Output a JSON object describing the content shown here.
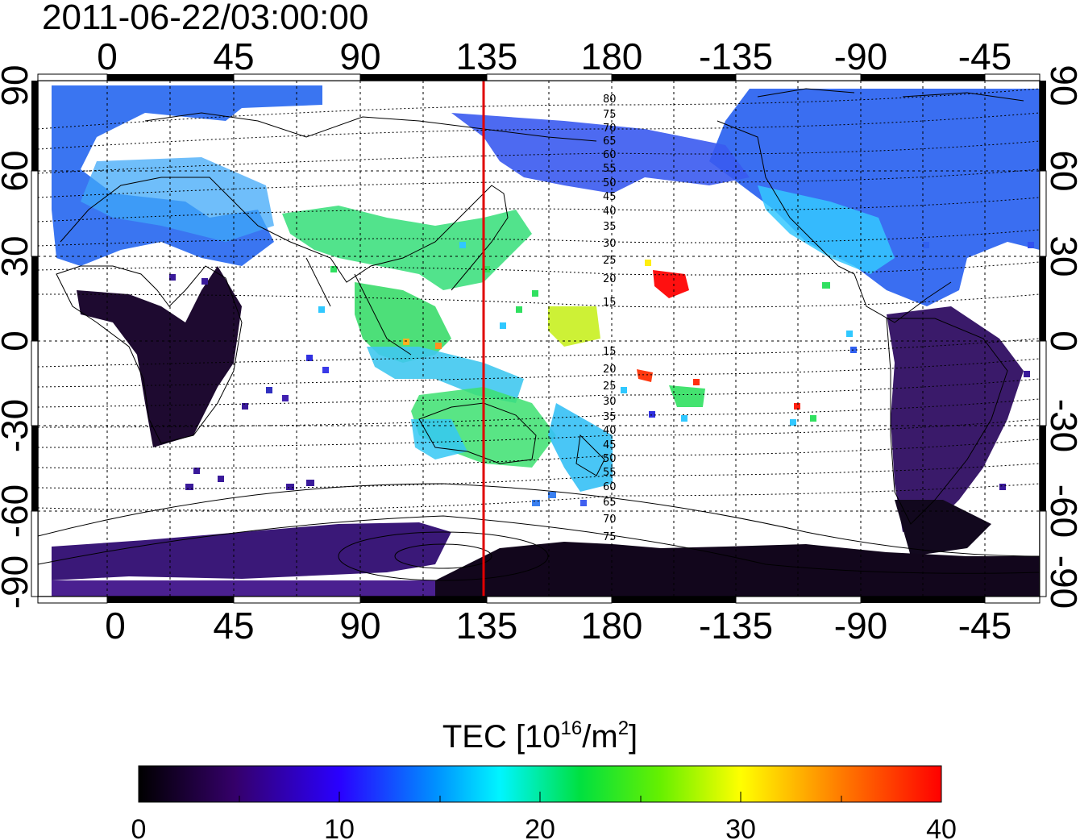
{
  "timestamp": "2011-06-22/03:00:00",
  "top_lon_labels": [
    "0",
    "45",
    "90",
    "135",
    "180",
    "-135",
    "-90",
    "-45"
  ],
  "bottom_lon_labels": [
    "0",
    "45",
    "90",
    "135",
    "180",
    "-135",
    "-90",
    "-45"
  ],
  "lat_labels": [
    "90",
    "60",
    "30",
    "0",
    "-30",
    "-60",
    "-90"
  ],
  "lat_values": [
    90,
    60,
    30,
    0,
    -30,
    -60,
    -90
  ],
  "lon_values": [
    0,
    45,
    90,
    135,
    180,
    225,
    270,
    315
  ],
  "meridian_marker": {
    "longitude": 135,
    "color": "#e00000"
  },
  "magnetic_latitude_labels": [
    "80",
    "75",
    "70",
    "65",
    "60",
    "55",
    "50",
    "45",
    "40",
    "35",
    "30",
    "25",
    "20",
    "15",
    "15",
    "20",
    "25",
    "30",
    "35",
    "40",
    "45",
    "50",
    "55",
    "60",
    "65",
    "70",
    "75"
  ],
  "colorbar": {
    "title_prefix": "TEC  [10",
    "title_sup1": "16",
    "title_mid": "/m",
    "title_sup2": "2",
    "title_suffix": "]",
    "min": 0,
    "max": 40,
    "tick_labels": [
      "0",
      "10",
      "20",
      "30",
      "40"
    ],
    "colors": [
      "#000000",
      "#40006e",
      "#3c00ff",
      "#0070ff",
      "#00ffff",
      "#00ee00",
      "#aaff00",
      "#ffff00",
      "#ff9000",
      "#ff0000"
    ]
  },
  "colors": {
    "polar_low": "#1a0a2e",
    "subauroral": "#3a56f0",
    "cyan": "#2ad8ff",
    "green": "#30e860",
    "red_patch": "#ff1010"
  }
}
